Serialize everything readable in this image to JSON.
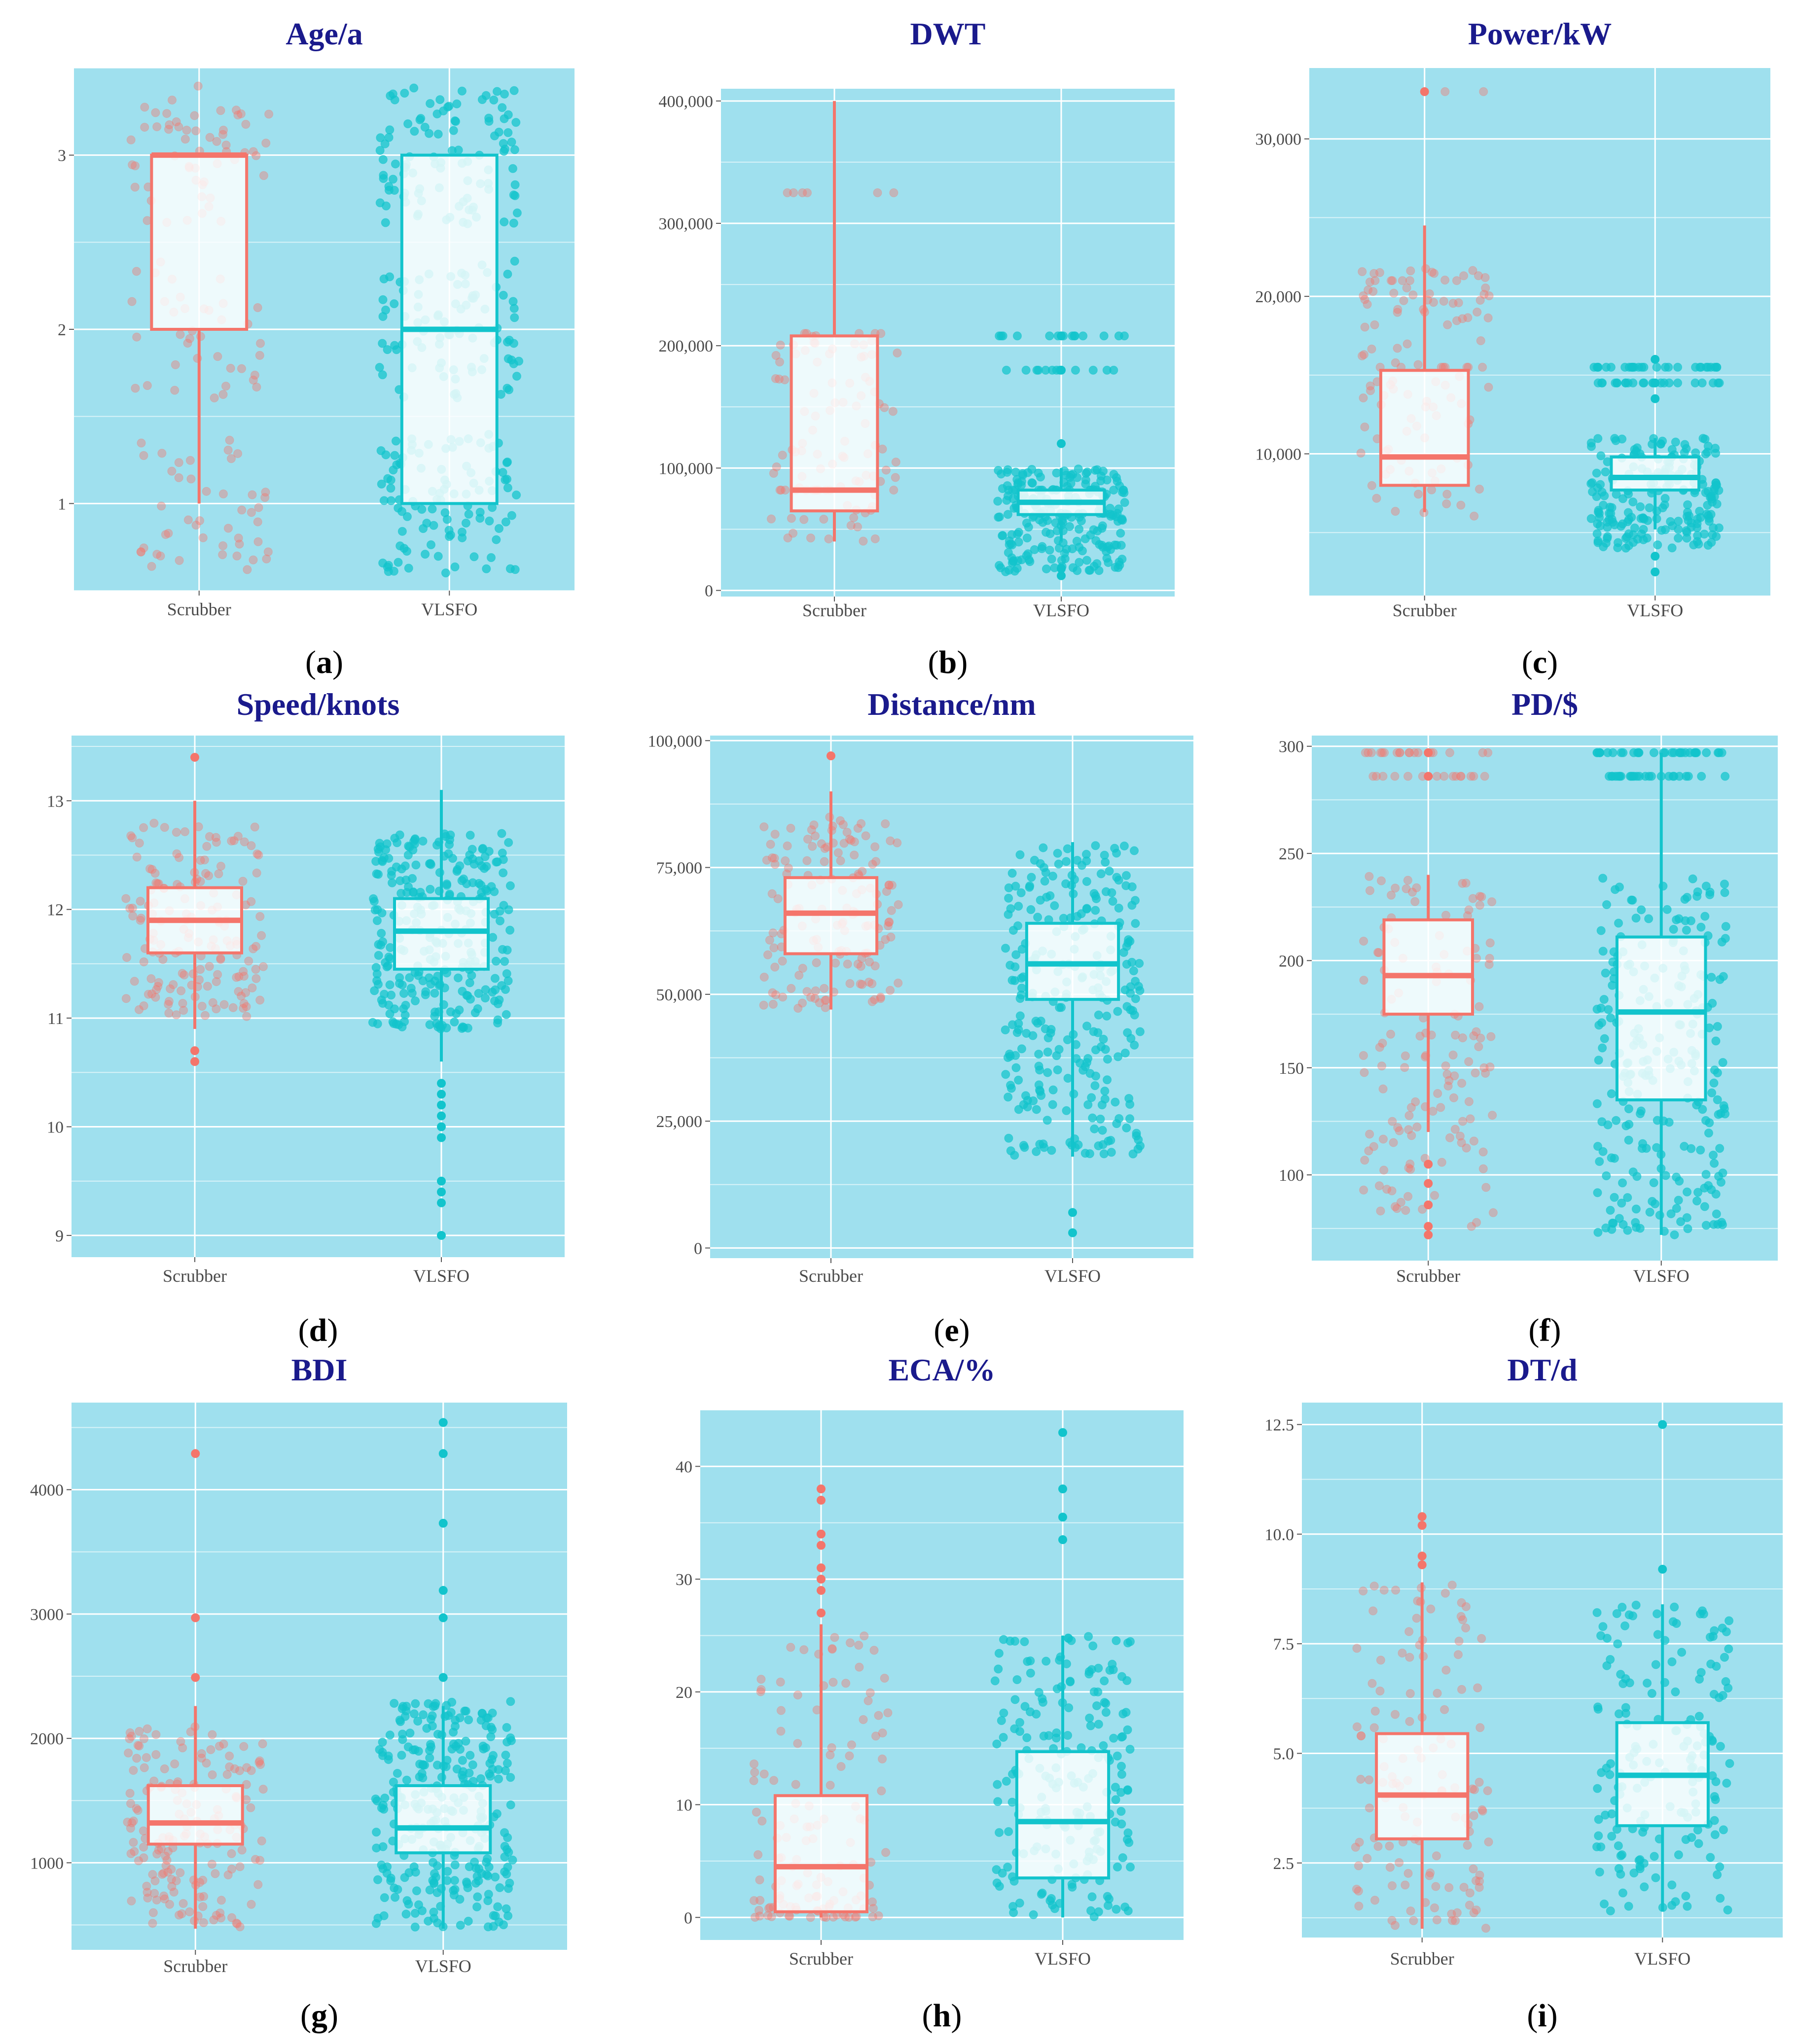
{
  "colors": {
    "panel_bg": "#9fe0ee",
    "grid": "#ffffff",
    "scrubber": "#f4756b",
    "scrubber_light": "#f5a7a6",
    "vlsfo": "#12c4cc",
    "title": "#1a1a8c",
    "box_fill": "#ffffff"
  },
  "chart_data": [
    {
      "id": "a",
      "type": "boxplot",
      "title": "Age/a",
      "caption_letter": "a",
      "categories": [
        "Scrubber",
        "VLSFO"
      ],
      "ylim": [
        0.5,
        3.5
      ],
      "yticks": [
        1,
        2,
        3
      ],
      "ytick_labels": [
        "1",
        "2",
        "3"
      ],
      "boxes": [
        {
          "name": "Scrubber",
          "q1": 2,
          "median": 3,
          "q3": 3,
          "whisker_low": 1,
          "whisker_high": 3,
          "outliers": []
        },
        {
          "name": "VLSFO",
          "q1": 1,
          "median": 2,
          "q3": 3,
          "whisker_low": 1,
          "whisker_high": 3,
          "outliers": []
        }
      ],
      "jitter": [
        {
          "n": 140,
          "levels": [
            1,
            2,
            3
          ],
          "spread": 0.4
        },
        {
          "n": 300,
          "levels": [
            1,
            2,
            3
          ],
          "spread": 0.4
        }
      ]
    },
    {
      "id": "b",
      "type": "boxplot",
      "title": "DWT",
      "caption_letter": "b",
      "categories": [
        "Scrubber",
        "VLSFO"
      ],
      "ylim": [
        -5000,
        410000
      ],
      "yticks": [
        0,
        100000,
        200000,
        300000,
        400000
      ],
      "ytick_labels": [
        "0",
        "100,000",
        "200,000",
        "300,000",
        "400,000"
      ],
      "boxes": [
        {
          "name": "Scrubber",
          "q1": 65000,
          "median": 82000,
          "q3": 208000,
          "whisker_low": 40000,
          "whisker_high": 400000,
          "outliers": []
        },
        {
          "name": "VLSFO",
          "q1": 62000,
          "median": 72000,
          "q3": 82000,
          "whisker_low": 40000,
          "whisker_high": 100000,
          "outliers": [
            12000,
            18000,
            120000,
            180000,
            208000
          ]
        }
      ],
      "jitter": [
        {
          "n": 110,
          "range": [
            40000,
            210000
          ],
          "clusters": [
            325000,
            210000,
            82000
          ]
        },
        {
          "n": 260,
          "range": [
            15000,
            100000
          ],
          "clusters": [
            180000,
            208000,
            63000,
            82000
          ]
        }
      ]
    },
    {
      "id": "c",
      "type": "boxplot",
      "title": "Power/kW",
      "caption_letter": "c",
      "categories": [
        "Scrubber",
        "VLSFO"
      ],
      "ylim": [
        1000,
        34500
      ],
      "yticks": [
        10000,
        20000,
        30000
      ],
      "ytick_labels": [
        "10,000",
        "20,000",
        "30,000"
      ],
      "boxes": [
        {
          "name": "Scrubber",
          "q1": 8000,
          "median": 9800,
          "q3": 15300,
          "whisker_low": 6300,
          "whisker_high": 24500,
          "outliers": [
            33000
          ]
        },
        {
          "name": "VLSFO",
          "q1": 7700,
          "median": 8500,
          "q3": 9800,
          "whisker_low": 5200,
          "whisker_high": 11000,
          "outliers": [
            2500,
            3500,
            13500,
            14500,
            16000
          ]
        }
      ],
      "jitter": [
        {
          "n": 120,
          "range": [
            6000,
            22000
          ],
          "clusters": [
            33000,
            21000,
            15500
          ]
        },
        {
          "n": 260,
          "range": [
            4000,
            11000
          ],
          "clusters": [
            14500,
            15500
          ]
        }
      ]
    },
    {
      "id": "d",
      "type": "boxplot",
      "title": "Speed/knots",
      "caption_letter": "d",
      "categories": [
        "Scrubber",
        "VLSFO"
      ],
      "ylim": [
        8.8,
        13.6
      ],
      "yticks": [
        9,
        10,
        11,
        12,
        13
      ],
      "ytick_labels": [
        "9",
        "10",
        "11",
        "12",
        "13"
      ],
      "boxes": [
        {
          "name": "Scrubber",
          "q1": 11.6,
          "median": 11.9,
          "q3": 12.2,
          "whisker_low": 10.9,
          "whisker_high": 13.0,
          "outliers": [
            10.6,
            10.7,
            13.4
          ]
        },
        {
          "name": "VLSFO",
          "q1": 11.45,
          "median": 11.8,
          "q3": 12.1,
          "whisker_low": 10.6,
          "whisker_high": 13.1,
          "outliers": [
            9.0,
            9.3,
            9.4,
            9.5,
            9.9,
            10.0,
            10.1,
            10.2,
            10.3,
            10.4
          ]
        }
      ],
      "jitter": [
        {
          "n": 160,
          "range": [
            11.0,
            12.8
          ]
        },
        {
          "n": 280,
          "range": [
            10.9,
            12.7
          ]
        }
      ]
    },
    {
      "id": "e",
      "type": "boxplot",
      "title": "Distance/nm",
      "caption_letter": "e",
      "categories": [
        "Scrubber",
        "VLSFO"
      ],
      "ylim": [
        -2000,
        101000
      ],
      "yticks": [
        0,
        25000,
        50000,
        75000,
        100000
      ],
      "ytick_labels": [
        "0",
        "25,000",
        "50,000",
        "75,000",
        "100,000"
      ],
      "boxes": [
        {
          "name": "Scrubber",
          "q1": 58000,
          "median": 66000,
          "q3": 73000,
          "whisker_low": 47000,
          "whisker_high": 90000,
          "outliers": [
            97000
          ]
        },
        {
          "name": "VLSFO",
          "q1": 49000,
          "median": 56000,
          "q3": 64000,
          "whisker_low": 18000,
          "whisker_high": 80000,
          "outliers": [
            3000,
            7000
          ]
        }
      ],
      "jitter": [
        {
          "n": 150,
          "range": [
            47000,
            85000
          ]
        },
        {
          "n": 280,
          "range": [
            18000,
            80000
          ]
        }
      ]
    },
    {
      "id": "f",
      "type": "boxplot",
      "title": "PD/$",
      "caption_letter": "f",
      "categories": [
        "Scrubber",
        "VLSFO"
      ],
      "ylim": [
        60,
        305
      ],
      "yticks": [
        100,
        150,
        200,
        250,
        300
      ],
      "ytick_labels": [
        "100",
        "150",
        "200",
        "250",
        "300"
      ],
      "boxes": [
        {
          "name": "Scrubber",
          "q1": 175,
          "median": 193,
          "q3": 219,
          "whisker_low": 120,
          "whisker_high": 240,
          "outliers": [
            72,
            76,
            86,
            96,
            105,
            286,
            297
          ]
        },
        {
          "name": "VLSFO",
          "q1": 135,
          "median": 176,
          "q3": 211,
          "whisker_low": 72,
          "whisker_high": 297,
          "outliers": []
        }
      ],
      "jitter": [
        {
          "n": 170,
          "range": [
            75,
            240
          ],
          "clusters": [
            286,
            297
          ]
        },
        {
          "n": 300,
          "range": [
            72,
            240
          ],
          "clusters": [
            286,
            297
          ]
        }
      ]
    },
    {
      "id": "g",
      "type": "boxplot",
      "title": "BDI",
      "caption_letter": "g",
      "categories": [
        "Scrubber",
        "VLSFO"
      ],
      "ylim": [
        300,
        4700
      ],
      "yticks": [
        1000,
        2000,
        3000,
        4000
      ],
      "ytick_labels": [
        "1000",
        "2000",
        "3000",
        "4000"
      ],
      "boxes": [
        {
          "name": "Scrubber",
          "q1": 1150,
          "median": 1320,
          "q3": 1620,
          "whisker_low": 470,
          "whisker_high": 2260,
          "outliers": [
            2490,
            2970,
            4290
          ]
        },
        {
          "name": "VLSFO",
          "q1": 1080,
          "median": 1280,
          "q3": 1620,
          "whisker_low": 470,
          "whisker_high": 2260,
          "outliers": [
            2490,
            2970,
            3190,
            3730,
            4290,
            4540
          ]
        }
      ],
      "jitter": [
        {
          "n": 170,
          "range": [
            480,
            2100
          ]
        },
        {
          "n": 300,
          "range": [
            480,
            2300
          ]
        }
      ]
    },
    {
      "id": "h",
      "type": "boxplot",
      "title": "ECA/%",
      "caption_letter": "h",
      "categories": [
        "Scrubber",
        "VLSFO"
      ],
      "ylim": [
        -2,
        45
      ],
      "yticks": [
        0,
        10,
        20,
        30,
        40
      ],
      "ytick_labels": [
        "0",
        "10",
        "20",
        "30",
        "40"
      ],
      "boxes": [
        {
          "name": "Scrubber",
          "q1": 0.5,
          "median": 4.5,
          "q3": 10.8,
          "whisker_low": 0,
          "whisker_high": 26,
          "outliers": [
            27,
            29,
            30,
            31,
            33,
            34,
            37,
            38
          ]
        },
        {
          "name": "VLSFO",
          "q1": 3.5,
          "median": 8.5,
          "q3": 14.7,
          "whisker_low": 0,
          "whisker_high": 25,
          "outliers": [
            33.5,
            35.5,
            38,
            43
          ]
        }
      ],
      "jitter": [
        {
          "n": 130,
          "range": [
            0,
            25
          ],
          "skew": "low"
        },
        {
          "n": 200,
          "range": [
            0,
            25
          ]
        }
      ]
    },
    {
      "id": "i",
      "type": "boxplot",
      "title": "DT/d",
      "caption_letter": "i",
      "categories": [
        "Scrubber",
        "VLSFO"
      ],
      "ylim": [
        0.8,
        13.0
      ],
      "yticks": [
        2.5,
        5.0,
        7.5,
        10.0,
        12.5
      ],
      "ytick_labels": [
        "2.5",
        "5.0",
        "7.5",
        "10.0",
        "12.5"
      ],
      "boxes": [
        {
          "name": "Scrubber",
          "q1": 3.05,
          "median": 4.05,
          "q3": 5.45,
          "whisker_low": 1.0,
          "whisker_high": 8.9,
          "outliers": [
            9.3,
            9.5,
            10.2,
            10.4
          ]
        },
        {
          "name": "VLSFO",
          "q1": 3.35,
          "median": 4.5,
          "q3": 5.7,
          "whisker_low": 1.4,
          "whisker_high": 8.4,
          "outliers": [
            9.2,
            12.5
          ]
        }
      ],
      "jitter": [
        {
          "n": 130,
          "range": [
            1.0,
            8.9
          ]
        },
        {
          "n": 170,
          "range": [
            1.4,
            8.4
          ]
        }
      ]
    }
  ]
}
